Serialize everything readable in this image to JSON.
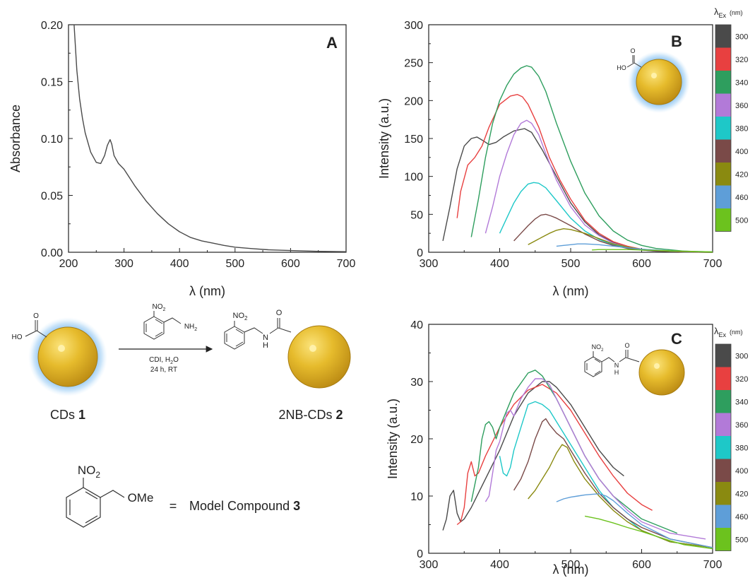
{
  "colors": {
    "axis": "#222222",
    "ex300": "#4a4a4a",
    "ex320": "#e84040",
    "ex340": "#2e9e5e",
    "ex360": "#b27ad8",
    "ex380": "#1ec8c8",
    "ex400": "#7a4a48",
    "ex420": "#8a8a10",
    "ex460": "#5e9ed8",
    "ex500": "#6cc21e",
    "gold": "#e2b82a",
    "glow": "#8ec4f0"
  },
  "colorbar": {
    "title_main": "λ",
    "title_sub": "Ex",
    "title_unit": "(nm)",
    "labels": [
      "300",
      "320",
      "340",
      "360",
      "380",
      "400",
      "420",
      "460",
      "500"
    ]
  },
  "chart_data": [
    {
      "panel": "A",
      "type": "line",
      "xlabel": "λ (nm)",
      "ylabel": "Absorbance",
      "xlim": [
        200,
        700
      ],
      "ylim": [
        0,
        0.2
      ],
      "xticks": [
        "200",
        "300",
        "400",
        "500",
        "600",
        "700"
      ],
      "yticks": [
        "0.00",
        "0.05",
        "0.10",
        "0.15",
        "0.20"
      ],
      "series": [
        {
          "color": "#4a4a4a",
          "x": [
            210,
            215,
            220,
            225,
            230,
            240,
            250,
            258,
            265,
            270,
            275,
            278,
            282,
            290,
            300,
            320,
            340,
            360,
            380,
            400,
            420,
            440,
            460,
            480,
            500,
            530,
            560,
            600,
            650,
            700
          ],
          "y": [
            0.2,
            0.16,
            0.135,
            0.118,
            0.105,
            0.088,
            0.079,
            0.078,
            0.085,
            0.094,
            0.099,
            0.095,
            0.085,
            0.078,
            0.073,
            0.058,
            0.045,
            0.034,
            0.025,
            0.018,
            0.013,
            0.01,
            0.008,
            0.006,
            0.0045,
            0.0032,
            0.0022,
            0.0015,
            0.0008,
            0.0005
          ]
        }
      ]
    },
    {
      "panel": "B",
      "type": "line",
      "xlabel": "λ (nm)",
      "ylabel": "Intensity (a.u.)",
      "xlim": [
        300,
        700
      ],
      "ylim": [
        0,
        300
      ],
      "xticks": [
        "300",
        "400",
        "500",
        "600",
        "700"
      ],
      "yticks": [
        "0",
        "50",
        "100",
        "150",
        "200",
        "250",
        "300"
      ],
      "series": [
        {
          "name": "300",
          "color": "#4a4a4a",
          "x": [
            320,
            330,
            340,
            350,
            360,
            368,
            375,
            385,
            395,
            405,
            420,
            435,
            445,
            460,
            480,
            500,
            520,
            540,
            560,
            580,
            600,
            620,
            640,
            660,
            700
          ],
          "y": [
            15,
            60,
            110,
            140,
            150,
            152,
            148,
            142,
            145,
            152,
            160,
            163,
            158,
            135,
            100,
            65,
            40,
            23,
            13,
            7,
            4,
            2,
            1,
            0.5,
            0
          ]
        },
        {
          "name": "320",
          "color": "#e84040",
          "x": [
            340,
            345,
            355,
            365,
            375,
            385,
            400,
            415,
            425,
            432,
            440,
            455,
            470,
            485,
            500,
            520,
            540,
            560,
            580,
            600,
            620,
            660,
            700
          ],
          "y": [
            45,
            80,
            115,
            125,
            140,
            165,
            195,
            206,
            208,
            205,
            195,
            165,
            125,
            95,
            70,
            42,
            25,
            14,
            8,
            4,
            2,
            1,
            0
          ]
        },
        {
          "name": "340",
          "color": "#2e9e5e",
          "x": [
            360,
            370,
            380,
            390,
            400,
            410,
            420,
            430,
            438,
            445,
            455,
            465,
            480,
            500,
            520,
            540,
            560,
            580,
            600,
            620,
            660,
            700
          ],
          "y": [
            20,
            70,
            125,
            170,
            200,
            220,
            235,
            243,
            246,
            244,
            232,
            212,
            170,
            120,
            78,
            48,
            28,
            16,
            9,
            5,
            1.5,
            0
          ]
        },
        {
          "name": "360",
          "color": "#b27ad8",
          "x": [
            380,
            390,
            400,
            410,
            420,
            430,
            438,
            445,
            455,
            465,
            480,
            500,
            520,
            540,
            560,
            580,
            600,
            620,
            660,
            700
          ],
          "y": [
            25,
            60,
            100,
            130,
            155,
            170,
            174,
            170,
            155,
            130,
            95,
            60,
            36,
            22,
            12,
            7,
            4,
            2,
            1,
            0
          ]
        },
        {
          "name": "380",
          "color": "#1ec8c8",
          "x": [
            400,
            410,
            420,
            430,
            440,
            448,
            455,
            465,
            480,
            500,
            520,
            540,
            560,
            580,
            600,
            620,
            660,
            700
          ],
          "y": [
            25,
            45,
            65,
            80,
            90,
            92,
            91,
            85,
            68,
            45,
            28,
            17,
            10,
            6,
            3,
            1.5,
            0.5,
            0
          ]
        },
        {
          "name": "400",
          "color": "#7a4a48",
          "x": [
            420,
            430,
            440,
            450,
            458,
            465,
            472,
            480,
            500,
            520,
            540,
            560,
            580,
            600,
            620,
            660,
            700
          ],
          "y": [
            15,
            25,
            35,
            44,
            49,
            50,
            48,
            45,
            35,
            24,
            15,
            9,
            5,
            3,
            1.5,
            0.5,
            0
          ]
        },
        {
          "name": "420",
          "color": "#8a8a10",
          "x": [
            440,
            450,
            460,
            470,
            480,
            490,
            500,
            520,
            540,
            560,
            580,
            600,
            640,
            700
          ],
          "y": [
            10,
            15,
            20,
            25,
            29,
            31,
            30,
            25,
            18,
            11,
            7,
            4,
            1.5,
            0
          ]
        },
        {
          "name": "460",
          "color": "#5e9ed8",
          "x": [
            480,
            490,
            500,
            510,
            520,
            530,
            540,
            560,
            580,
            600,
            640,
            700
          ],
          "y": [
            8,
            9,
            10,
            11,
            11,
            10.5,
            10,
            8,
            6,
            4,
            2,
            0.5
          ]
        },
        {
          "name": "500",
          "color": "#6cc21e",
          "x": [
            530,
            540,
            560,
            580,
            600,
            620,
            640,
            660,
            700
          ],
          "y": [
            3,
            3.5,
            3.5,
            3.5,
            3,
            2.5,
            2,
            1.5,
            0.5
          ]
        }
      ]
    },
    {
      "panel": "C",
      "type": "line",
      "xlabel": "λ (nm)",
      "ylabel": "Intensity (a.u.)",
      "xlim": [
        300,
        700
      ],
      "ylim": [
        0,
        40
      ],
      "xticks": [
        "300",
        "400",
        "500",
        "600",
        "700"
      ],
      "yticks": [
        "0",
        "10",
        "20",
        "30",
        "40"
      ],
      "series": [
        {
          "name": "300",
          "color": "#4a4a4a",
          "x": [
            320,
            325,
            330,
            335,
            340,
            345,
            350,
            360,
            380,
            400,
            420,
            440,
            460,
            470,
            480,
            500,
            520,
            540,
            560,
            575
          ],
          "y": [
            4,
            6,
            10,
            11,
            7,
            5.5,
            6,
            8,
            13,
            18,
            24,
            28,
            30,
            30,
            29,
            26,
            22,
            18,
            15,
            13.5
          ]
        },
        {
          "name": "320",
          "color": "#e84040",
          "x": [
            340,
            345,
            350,
            355,
            360,
            365,
            370,
            380,
            400,
            420,
            440,
            460,
            480,
            500,
            520,
            540,
            560,
            580,
            600,
            615
          ],
          "y": [
            5,
            5.5,
            8,
            14,
            16,
            13.5,
            14,
            17,
            22,
            26,
            28.5,
            29.5,
            28,
            25,
            21,
            17,
            13.5,
            10.5,
            8.5,
            7.5
          ]
        },
        {
          "name": "340",
          "color": "#2e9e5e",
          "x": [
            360,
            365,
            370,
            375,
            380,
            385,
            390,
            395,
            400,
            420,
            440,
            450,
            460,
            480,
            500,
            520,
            540,
            560,
            580,
            600,
            620,
            650
          ],
          "y": [
            9,
            12,
            15,
            20,
            22.5,
            23,
            22,
            20,
            22,
            28,
            31.5,
            32,
            31,
            27,
            22,
            17,
            13,
            10,
            8,
            6,
            5,
            3.5
          ]
        },
        {
          "name": "360",
          "color": "#b27ad8",
          "x": [
            380,
            385,
            390,
            395,
            400,
            405,
            410,
            415,
            420,
            430,
            440,
            450,
            460,
            470,
            480,
            500,
            520,
            540,
            560,
            580,
            600,
            640,
            690
          ],
          "y": [
            9,
            10,
            14,
            18,
            19.5,
            22,
            24.5,
            25,
            24,
            27,
            29,
            30.5,
            30.5,
            29.5,
            27,
            22,
            17,
            13,
            10,
            7.5,
            5.5,
            3.5,
            2.5
          ]
        },
        {
          "name": "380",
          "color": "#1ec8c8",
          "x": [
            400,
            405,
            410,
            415,
            420,
            430,
            440,
            450,
            460,
            470,
            480,
            500,
            520,
            540,
            560,
            580,
            600,
            640,
            700
          ],
          "y": [
            17,
            14,
            13.5,
            15,
            18,
            22,
            26,
            26.5,
            26,
            25,
            23,
            19,
            15,
            11,
            8,
            6,
            4,
            2,
            1
          ]
        },
        {
          "name": "400",
          "color": "#7a4a48",
          "x": [
            420,
            430,
            440,
            450,
            460,
            465,
            470,
            480,
            490,
            500,
            520,
            540,
            560,
            580,
            600,
            640,
            700
          ],
          "y": [
            11,
            13,
            16,
            20,
            23,
            23.5,
            22.5,
            21,
            20,
            18,
            14,
            10.5,
            8,
            6,
            4.5,
            2.5,
            1
          ]
        },
        {
          "name": "420",
          "color": "#8a8a10",
          "x": [
            440,
            450,
            460,
            470,
            480,
            488,
            495,
            505,
            520,
            540,
            560,
            580,
            600,
            640,
            700
          ],
          "y": [
            9.5,
            11,
            13,
            15,
            17.5,
            19,
            18.5,
            16,
            13,
            10,
            7.5,
            5.5,
            4,
            2,
            1
          ]
        },
        {
          "name": "460",
          "color": "#5e9ed8",
          "x": [
            480,
            490,
            500,
            510,
            520,
            530,
            540,
            550,
            560,
            580,
            600,
            640,
            700
          ],
          "y": [
            9,
            9.5,
            9.8,
            10,
            10.2,
            10.3,
            10.4,
            10,
            9.2,
            7,
            5,
            2.5,
            1
          ]
        },
        {
          "name": "500",
          "color": "#6cc21e",
          "x": [
            520,
            540,
            560,
            580,
            600,
            620,
            640,
            660,
            700
          ],
          "y": [
            6.5,
            6,
            5.3,
            4.5,
            3.8,
            3,
            2.2,
            1.5,
            0.8
          ]
        }
      ]
    }
  ],
  "panel_labels": {
    "A": "A",
    "B": "B",
    "C": "C"
  },
  "scheme": {
    "reagent_top": "NO",
    "reagent_sub": "2",
    "reagent_amine": "NH",
    "reagent_amine_sub": "2",
    "conditions_line1_main": "CDI, H",
    "conditions_line1_sub": "2",
    "conditions_line1_tail": "O",
    "conditions_line2": "24 h, RT",
    "start_label_main": "CDs ",
    "start_label_bold": "1",
    "product_label_main": "2NB-CDs ",
    "product_label_bold": "2",
    "ho_label": "HO",
    "o_label": "O",
    "nh_label": "N",
    "h_label": "H",
    "model_no2": "NO",
    "model_no2_sub": "2",
    "model_ome": "OMe",
    "model_eq": "=",
    "model_text": "Model Compound ",
    "model_bold": "3"
  }
}
